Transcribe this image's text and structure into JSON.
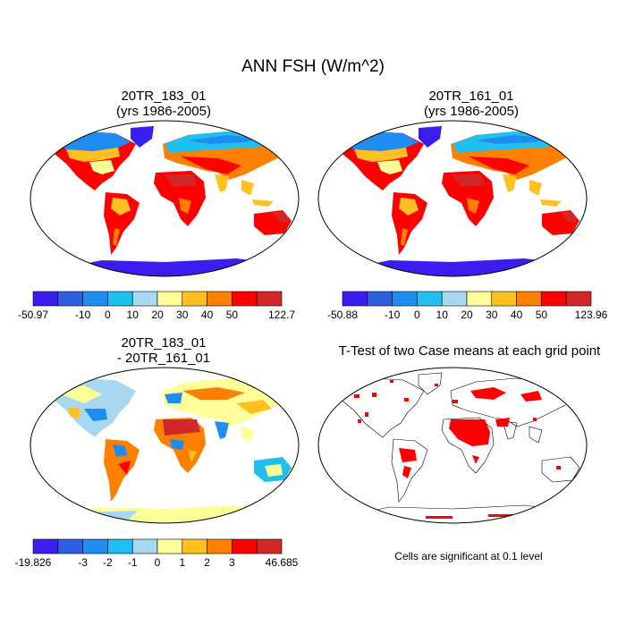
{
  "figure": {
    "title": "ANN FSH (W/m^2)"
  },
  "panels": {
    "top_left": {
      "line1": "20TR_183_01",
      "line2": "(yrs 1986-2005)"
    },
    "top_right": {
      "line1": "20TR_161_01",
      "line2": "(yrs 1986-2005)"
    },
    "bottom_left": {
      "line1": "20TR_183_01",
      "line2": "- 20TR_161_01"
    },
    "bottom_right": {
      "line1": "T-Test of two Case means at each grid point",
      "note": "Cells are significant at 0.1 level"
    }
  },
  "colorbars": {
    "abs": {
      "colors": [
        "#3a1ef0",
        "#2f5fe0",
        "#1e8cf0",
        "#1ec0f0",
        "#a8d8f0",
        "#ffff9a",
        "#ffc020",
        "#ff8000",
        "#ff0000",
        "#d02828"
      ],
      "labels": [
        "-10",
        "0",
        "10",
        "20",
        "30",
        "40",
        "50"
      ]
    },
    "abs_left_min": "-50.97",
    "abs_left_max": "122.7",
    "abs_right_min": "-50.88",
    "abs_right_max": "123.96",
    "diff": {
      "colors": [
        "#3a1ef0",
        "#2f5fe0",
        "#1e8cf0",
        "#1ec0f0",
        "#a8d8f0",
        "#ffff9a",
        "#ffc020",
        "#ff8000",
        "#ff0000",
        "#d02828"
      ],
      "labels": [
        "-3",
        "-2",
        "-1",
        "0",
        "1",
        "2",
        "3"
      ],
      "min": "-19.826",
      "max": "46.685"
    }
  },
  "colors": {
    "ocean": "#ffffff",
    "border": "#000000",
    "significant": "#ff0000"
  }
}
